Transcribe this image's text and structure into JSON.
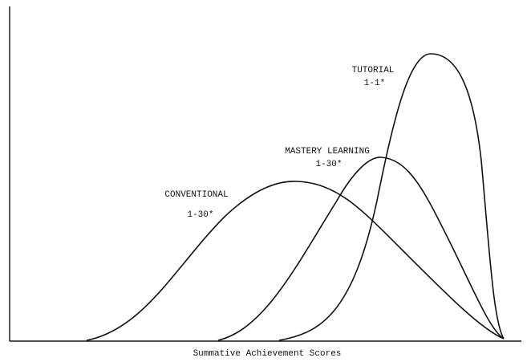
{
  "title": null,
  "x_axis_label": "Summative Achievement Scores",
  "curves": [
    {
      "label": "TUTORIAL",
      "sublabel": "1-1*"
    },
    {
      "label": "MASTERY LEARNING",
      "sublabel": "1-30*"
    },
    {
      "label": "CONVENTIONAL",
      "sublabel": "1-30*"
    }
  ]
}
